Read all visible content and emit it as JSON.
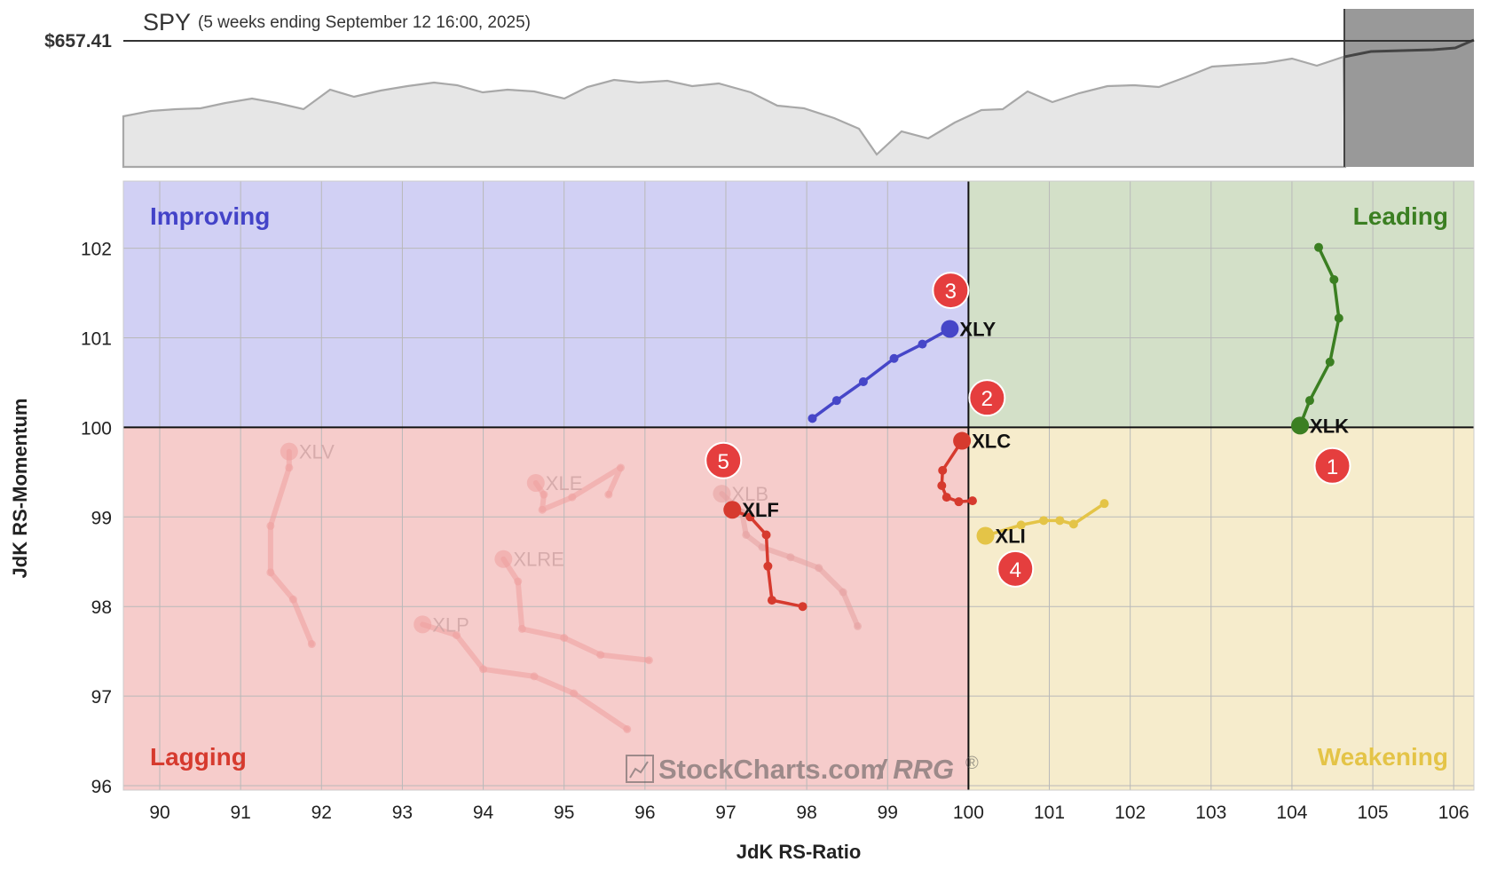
{
  "header": {
    "symbol": "SPY",
    "subtitle": "(5 weeks ending September 12 16:00, 2025)",
    "price_label": "$657.41"
  },
  "quadrants": {
    "improving": {
      "label": "Improving",
      "color": "#4343c8",
      "fill": "#d1d0f4"
    },
    "leading": {
      "label": "Leading",
      "color": "#3b7f22",
      "fill": "#d3e0c8"
    },
    "lagging": {
      "label": "Lagging",
      "color": "#d63a2e",
      "fill": "#f6cccb"
    },
    "weakening": {
      "label": "Weakening",
      "color": "#e4c447",
      "fill": "#f6eccc"
    }
  },
  "watermark": {
    "brand": "StockCharts.com",
    "suffix": " / RRG",
    "mark": "®"
  },
  "chart_data": {
    "type": "scatter",
    "xlabel": "JdK RS-Ratio",
    "ylabel": "JdK RS-Momentum",
    "xlim": [
      89.55,
      106.25
    ],
    "ylim": [
      95.95,
      102.75
    ],
    "xticks": [
      "90",
      "91",
      "92",
      "93",
      "94",
      "95",
      "96",
      "97",
      "98",
      "99",
      "100",
      "101",
      "102",
      "103",
      "104",
      "105",
      "106"
    ],
    "yticks": [
      "96",
      "97",
      "98",
      "99",
      "100",
      "101",
      "102"
    ],
    "grid": true,
    "center": [
      100,
      100
    ],
    "series": [
      {
        "name": "XLK",
        "color": "#3b7f22",
        "faded": false,
        "points": [
          [
            104.33,
            102.01
          ],
          [
            104.52,
            101.65
          ],
          [
            104.58,
            101.22
          ],
          [
            104.47,
            100.73
          ],
          [
            104.22,
            100.3
          ],
          [
            104.1,
            100.02
          ]
        ]
      },
      {
        "name": "XLY",
        "color": "#4646c8",
        "faded": false,
        "points": [
          [
            98.07,
            100.1
          ],
          [
            98.37,
            100.3
          ],
          [
            98.7,
            100.51
          ],
          [
            99.08,
            100.77
          ],
          [
            99.43,
            100.93
          ],
          [
            99.77,
            101.1
          ]
        ]
      },
      {
        "name": "XLC",
        "color": "#d63a2e",
        "faded": false,
        "points": [
          [
            100.05,
            99.18
          ],
          [
            99.88,
            99.17
          ],
          [
            99.73,
            99.22
          ],
          [
            99.67,
            99.35
          ],
          [
            99.68,
            99.52
          ],
          [
            99.92,
            99.85
          ]
        ]
      },
      {
        "name": "XLI",
        "color": "#e4c447",
        "faded": false,
        "points": [
          [
            101.68,
            99.15
          ],
          [
            101.3,
            98.92
          ],
          [
            101.13,
            98.96
          ],
          [
            100.93,
            98.96
          ],
          [
            100.65,
            98.91
          ],
          [
            100.21,
            98.79
          ]
        ]
      },
      {
        "name": "XLF",
        "color": "#d63a2e",
        "faded": false,
        "points": [
          [
            97.95,
            98.0
          ],
          [
            97.57,
            98.07
          ],
          [
            97.52,
            98.45
          ],
          [
            97.5,
            98.8
          ],
          [
            97.3,
            99.0
          ],
          [
            97.08,
            99.08
          ]
        ]
      },
      {
        "name": "XLB",
        "color": "#e6a0a0",
        "faded": true,
        "points": [
          [
            98.63,
            97.78
          ],
          [
            98.45,
            98.16
          ],
          [
            98.15,
            98.43
          ],
          [
            97.8,
            98.55
          ],
          [
            97.45,
            98.66
          ],
          [
            97.25,
            98.8
          ],
          [
            97.2,
            99.05
          ],
          [
            96.95,
            99.26
          ]
        ]
      },
      {
        "name": "XLV",
        "color": "#ee9e9e",
        "faded": true,
        "points": [
          [
            91.88,
            97.58
          ],
          [
            91.65,
            98.08
          ],
          [
            91.37,
            98.38
          ],
          [
            91.37,
            98.9
          ],
          [
            91.6,
            99.55
          ],
          [
            91.6,
            99.73
          ]
        ]
      },
      {
        "name": "XLE",
        "color": "#ee9e9e",
        "faded": true,
        "points": [
          [
            95.55,
            99.25
          ],
          [
            95.7,
            99.55
          ],
          [
            95.1,
            99.22
          ],
          [
            94.73,
            99.08
          ],
          [
            94.75,
            99.25
          ],
          [
            94.65,
            99.38
          ]
        ]
      },
      {
        "name": "XLRE",
        "color": "#ee9e9e",
        "faded": true,
        "points": [
          [
            96.05,
            97.4
          ],
          [
            95.45,
            97.46
          ],
          [
            95.0,
            97.65
          ],
          [
            94.48,
            97.75
          ],
          [
            94.43,
            98.28
          ],
          [
            94.25,
            98.53
          ]
        ]
      },
      {
        "name": "XLP",
        "color": "#ee9e9e",
        "faded": true,
        "points": [
          [
            95.78,
            96.63
          ],
          [
            95.12,
            97.03
          ],
          [
            94.63,
            97.22
          ],
          [
            94.0,
            97.3
          ],
          [
            93.67,
            97.68
          ],
          [
            93.25,
            97.8
          ]
        ]
      }
    ],
    "markers": [
      {
        "label": "1",
        "x": 104.5,
        "y": 99.57
      },
      {
        "label": "2",
        "x": 100.23,
        "y": 100.33
      },
      {
        "label": "3",
        "x": 99.78,
        "y": 101.53
      },
      {
        "label": "4",
        "x": 100.58,
        "y": 98.42
      },
      {
        "label": "5",
        "x": 96.97,
        "y": 99.63
      }
    ]
  }
}
